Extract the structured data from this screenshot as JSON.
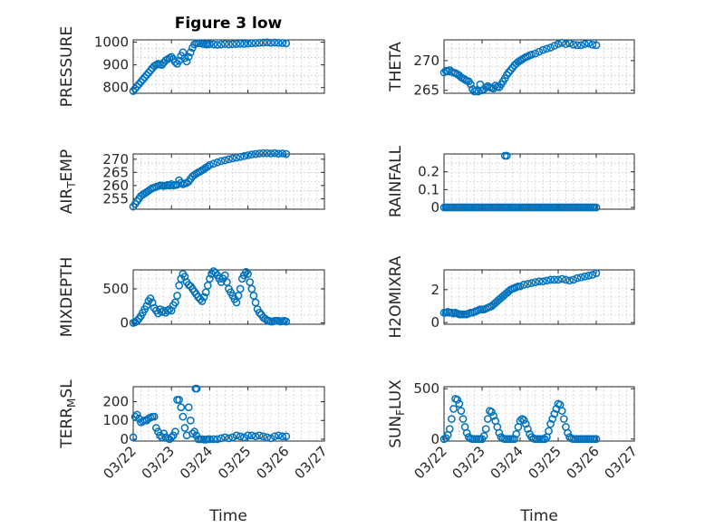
{
  "window": {
    "title": "Figure 3 low"
  },
  "colors": {
    "marker": "#0072BD",
    "axis": "#262626",
    "grid": "#b0b0b0"
  },
  "chart_data": [
    {
      "type": "scatter",
      "id": "pressure",
      "title": "Figure 3 low",
      "ylabel": "PRESSURE",
      "xlim": [
        0.0,
        5.0
      ],
      "ylim": [
        775,
        1010
      ],
      "yticks": [
        800,
        900,
        1000
      ],
      "ytick_labels": [
        "800",
        "900",
        "1000"
      ],
      "xticks": [
        0,
        1,
        2,
        3,
        4,
        5
      ],
      "xtick_labels": [],
      "xlabel": "",
      "x": [
        0,
        0.05,
        0.1,
        0.15,
        0.2,
        0.25,
        0.3,
        0.35,
        0.4,
        0.45,
        0.5,
        0.55,
        0.6,
        0.65,
        0.7,
        0.75,
        0.8,
        0.85,
        0.9,
        0.95,
        1.0,
        1.05,
        1.1,
        1.15,
        1.2,
        1.25,
        1.3,
        1.35,
        1.4,
        1.45,
        1.5,
        1.55,
        1.6,
        1.65,
        1.7,
        1.75,
        1.8,
        1.85,
        1.9,
        1.95,
        2.0,
        2.1,
        2.2,
        2.3,
        2.4,
        2.5,
        2.6,
        2.7,
        2.8,
        2.9,
        3.0,
        3.1,
        3.2,
        3.3,
        3.4,
        3.5,
        3.6,
        3.7,
        3.8,
        3.9,
        4.0
      ],
      "y": [
        785,
        795,
        805,
        815,
        825,
        835,
        845,
        855,
        865,
        875,
        885,
        895,
        900,
        905,
        902,
        900,
        910,
        920,
        925,
        930,
        935,
        925,
        912,
        905,
        918,
        940,
        955,
        930,
        915,
        935,
        955,
        975,
        990,
        995,
        995,
        995,
        993,
        992,
        990,
        990,
        992,
        990,
        988,
        990,
        992,
        990,
        991,
        992,
        993,
        992,
        994,
        995,
        996,
        997,
        998,
        999,
        997,
        998,
        997,
        996,
        995
      ]
    },
    {
      "type": "scatter",
      "id": "theta",
      "ylabel": "THETA",
      "xlim": [
        0.0,
        5.0
      ],
      "ylim": [
        264.5,
        273.5
      ],
      "yticks": [
        265,
        270
      ],
      "ytick_labels": [
        "265",
        "270"
      ],
      "xticks": [
        0,
        1,
        2,
        3,
        4,
        5
      ],
      "xtick_labels": [],
      "xlabel": "",
      "x": [
        0,
        0.05,
        0.1,
        0.15,
        0.2,
        0.25,
        0.3,
        0.35,
        0.4,
        0.45,
        0.5,
        0.55,
        0.6,
        0.65,
        0.7,
        0.75,
        0.8,
        0.85,
        0.9,
        0.95,
        1.0,
        1.05,
        1.1,
        1.15,
        1.2,
        1.25,
        1.3,
        1.35,
        1.4,
        1.45,
        1.5,
        1.55,
        1.6,
        1.65,
        1.7,
        1.75,
        1.8,
        1.85,
        1.9,
        1.95,
        2.0,
        2.05,
        2.1,
        2.15,
        2.2,
        2.25,
        2.3,
        2.4,
        2.5,
        2.6,
        2.7,
        2.8,
        2.9,
        3.0,
        3.1,
        3.2,
        3.3,
        3.4,
        3.5,
        3.6,
        3.7,
        3.8,
        3.9,
        4.0
      ],
      "y": [
        268.0,
        268.3,
        268.2,
        268.4,
        268.1,
        268.0,
        267.9,
        267.7,
        267.5,
        267.2,
        267.0,
        266.8,
        266.6,
        266.5,
        266.0,
        265.2,
        264.8,
        265.0,
        264.8,
        266.0,
        265.0,
        265.2,
        265.5,
        265.7,
        265.5,
        265.4,
        265.3,
        265.8,
        265.6,
        265.5,
        266.0,
        266.5,
        267.0,
        267.6,
        268.0,
        268.4,
        268.8,
        269.2,
        269.5,
        269.8,
        270.0,
        270.2,
        270.4,
        270.6,
        270.7,
        270.9,
        271.0,
        271.2,
        271.5,
        271.8,
        272.0,
        272.2,
        272.5,
        272.8,
        273.0,
        272.8,
        272.9,
        272.7,
        272.6,
        272.6,
        272.8,
        272.9,
        272.7,
        272.6
      ]
    },
    {
      "type": "scatter",
      "id": "airtemp",
      "ylabel": "AIR_TEMP",
      "xlim": [
        0.0,
        5.0
      ],
      "ylim": [
        251,
        272
      ],
      "yticks": [
        255,
        260,
        265,
        270
      ],
      "ytick_labels": [
        "255",
        "260",
        "265",
        "270"
      ],
      "xticks": [
        0,
        1,
        2,
        3,
        4,
        5
      ],
      "xtick_labels": [],
      "xlabel": "",
      "x": [
        0,
        0.05,
        0.1,
        0.15,
        0.2,
        0.25,
        0.3,
        0.35,
        0.4,
        0.45,
        0.5,
        0.55,
        0.6,
        0.65,
        0.7,
        0.75,
        0.8,
        0.85,
        0.9,
        0.95,
        1.0,
        1.05,
        1.1,
        1.15,
        1.2,
        1.25,
        1.3,
        1.35,
        1.4,
        1.45,
        1.5,
        1.55,
        1.6,
        1.65,
        1.7,
        1.75,
        1.8,
        1.85,
        1.9,
        1.95,
        2.0,
        2.1,
        2.2,
        2.3,
        2.4,
        2.5,
        2.6,
        2.7,
        2.8,
        2.9,
        3.0,
        3.1,
        3.2,
        3.3,
        3.4,
        3.5,
        3.6,
        3.7,
        3.8,
        3.9,
        4.0
      ],
      "y": [
        252,
        253,
        254,
        255,
        256,
        256.5,
        257,
        257.5,
        258,
        258.5,
        259,
        259.2,
        259.5,
        259.8,
        260,
        260,
        259.8,
        260,
        260.2,
        260,
        260.5,
        260,
        260.2,
        260.3,
        262,
        261,
        260.5,
        260.8,
        261,
        261.5,
        262.5,
        263.5,
        264,
        264.5,
        265,
        265.3,
        265.8,
        266.2,
        266.8,
        267.2,
        267.8,
        268.3,
        268.8,
        269.3,
        269.6,
        270,
        270.3,
        270.6,
        270.9,
        271.2,
        271.5,
        271.8,
        272,
        272.2,
        272.3,
        272.3,
        272.2,
        272.3,
        272.1,
        272.2,
        272.0
      ]
    },
    {
      "type": "scatter",
      "id": "rainfall",
      "ylabel": "RAINFALL",
      "xlim": [
        0.0,
        5.0
      ],
      "ylim": [
        -0.01,
        0.3
      ],
      "yticks": [
        0,
        0.1,
        0.2
      ],
      "ytick_labels": [
        "0",
        "0.1",
        "0.2"
      ],
      "xticks": [
        0,
        1,
        2,
        3,
        4,
        5
      ],
      "xtick_labels": [],
      "xlabel": "",
      "x": [
        0,
        0.05,
        0.1,
        0.15,
        0.2,
        0.25,
        0.3,
        0.35,
        0.4,
        0.45,
        0.5,
        0.55,
        0.6,
        0.65,
        0.7,
        0.75,
        0.8,
        0.85,
        0.9,
        0.95,
        1.0,
        1.05,
        1.1,
        1.15,
        1.2,
        1.25,
        1.3,
        1.35,
        1.4,
        1.45,
        1.5,
        1.55,
        1.6,
        1.65,
        1.7,
        1.75,
        1.8,
        1.85,
        1.9,
        1.95,
        2.0,
        2.05,
        2.1,
        2.15,
        2.2,
        2.25,
        2.3,
        2.35,
        2.4,
        2.45,
        2.5,
        2.55,
        2.6,
        2.65,
        2.7,
        2.75,
        2.8,
        2.85,
        2.9,
        2.95,
        3.0,
        3.05,
        3.1,
        3.15,
        3.2,
        3.25,
        3.3,
        3.35,
        3.4,
        3.45,
        3.5,
        3.55,
        3.6,
        3.65,
        3.7,
        3.75,
        3.8,
        3.85,
        3.9,
        3.95,
        4.0,
        1.6,
        1.65
      ],
      "y": [
        0,
        0,
        0,
        0,
        0,
        0,
        0,
        0,
        0,
        0,
        0,
        0,
        0,
        0,
        0,
        0,
        0,
        0,
        0,
        0,
        0,
        0,
        0,
        0,
        0,
        0,
        0,
        0,
        0,
        0,
        0,
        0,
        0,
        0,
        0,
        0,
        0,
        0,
        0,
        0,
        0,
        0,
        0,
        0,
        0,
        0,
        0,
        0,
        0,
        0,
        0,
        0,
        0,
        0,
        0,
        0,
        0,
        0,
        0,
        0,
        0,
        0,
        0,
        0,
        0,
        0,
        0,
        0,
        0,
        0,
        0,
        0,
        0,
        0,
        0,
        0,
        0,
        0,
        0,
        0,
        0,
        0.29,
        0.29
      ]
    },
    {
      "type": "scatter",
      "id": "mixdepth",
      "ylabel": "MIXDEPTH",
      "xlim": [
        0.0,
        5.0
      ],
      "ylim": [
        -20,
        780
      ],
      "yticks": [
        0,
        500
      ],
      "ytick_labels": [
        "0",
        "500"
      ],
      "xticks": [
        0,
        1,
        2,
        3,
        4,
        5
      ],
      "xtick_labels": [],
      "xlabel": "",
      "x": [
        0,
        0.05,
        0.1,
        0.15,
        0.2,
        0.25,
        0.3,
        0.35,
        0.4,
        0.45,
        0.5,
        0.55,
        0.6,
        0.65,
        0.7,
        0.75,
        0.8,
        0.85,
        0.9,
        0.95,
        1.0,
        1.05,
        1.1,
        1.15,
        1.2,
        1.25,
        1.3,
        1.35,
        1.4,
        1.45,
        1.5,
        1.55,
        1.6,
        1.65,
        1.7,
        1.75,
        1.8,
        1.85,
        1.9,
        1.95,
        2.0,
        2.05,
        2.1,
        2.15,
        2.2,
        2.25,
        2.3,
        2.35,
        2.4,
        2.45,
        2.5,
        2.55,
        2.6,
        2.65,
        2.7,
        2.75,
        2.8,
        2.85,
        2.9,
        2.95,
        3.0,
        3.05,
        3.1,
        3.15,
        3.2,
        3.25,
        3.3,
        3.35,
        3.4,
        3.45,
        3.5,
        3.55,
        3.6,
        3.65,
        3.7,
        3.75,
        3.8,
        3.85,
        3.9,
        3.95,
        4.0
      ],
      "y": [
        0,
        10,
        30,
        60,
        100,
        150,
        200,
        250,
        320,
        360,
        300,
        220,
        180,
        140,
        200,
        160,
        180,
        150,
        180,
        200,
        180,
        260,
        300,
        400,
        550,
        650,
        720,
        680,
        600,
        560,
        540,
        500,
        460,
        420,
        380,
        350,
        320,
        380,
        450,
        550,
        650,
        720,
        760,
        740,
        700,
        650,
        600,
        650,
        700,
        600,
        500,
        450,
        400,
        350,
        300,
        400,
        500,
        650,
        700,
        750,
        720,
        600,
        500,
        400,
        300,
        200,
        150,
        120,
        80,
        60,
        40,
        30,
        20,
        20,
        30,
        30,
        30,
        20,
        25,
        30,
        20
      ]
    },
    {
      "type": "scatter",
      "id": "h2omixra",
      "ylabel": "H2OMIXRA",
      "xlim": [
        0.0,
        5.0
      ],
      "ylim": [
        -0.1,
        3.2
      ],
      "yticks": [
        0,
        2
      ],
      "ytick_labels": [
        "0",
        "2"
      ],
      "xticks": [
        0,
        1,
        2,
        3,
        4,
        5
      ],
      "xtick_labels": [],
      "xlabel": "",
      "x": [
        0,
        0.05,
        0.1,
        0.15,
        0.2,
        0.25,
        0.3,
        0.35,
        0.4,
        0.45,
        0.5,
        0.55,
        0.6,
        0.65,
        0.7,
        0.75,
        0.8,
        0.85,
        0.9,
        0.95,
        1.0,
        1.05,
        1.1,
        1.15,
        1.2,
        1.25,
        1.3,
        1.35,
        1.4,
        1.45,
        1.5,
        1.55,
        1.6,
        1.65,
        1.7,
        1.75,
        1.8,
        1.85,
        1.9,
        1.95,
        2.0,
        2.1,
        2.2,
        2.3,
        2.4,
        2.5,
        2.6,
        2.7,
        2.8,
        2.9,
        3.0,
        3.1,
        3.2,
        3.3,
        3.4,
        3.5,
        3.6,
        3.7,
        3.8,
        3.9,
        4.0
      ],
      "y": [
        0.6,
        0.6,
        0.65,
        0.6,
        0.6,
        0.55,
        0.6,
        0.55,
        0.5,
        0.5,
        0.5,
        0.5,
        0.5,
        0.55,
        0.6,
        0.6,
        0.65,
        0.7,
        0.75,
        0.8,
        0.8,
        0.8,
        0.85,
        0.9,
        0.95,
        1.0,
        1.1,
        1.2,
        1.3,
        1.4,
        1.5,
        1.6,
        1.7,
        1.8,
        1.9,
        2.0,
        2.05,
        2.1,
        2.15,
        2.2,
        2.2,
        2.3,
        2.35,
        2.4,
        2.45,
        2.5,
        2.5,
        2.55,
        2.6,
        2.6,
        2.6,
        2.65,
        2.6,
        2.55,
        2.6,
        2.7,
        2.75,
        2.8,
        2.85,
        2.9,
        3.0
      ]
    },
    {
      "type": "scatter",
      "id": "terr_msl",
      "ylabel": "TERR_MSL",
      "xlim": [
        0.0,
        5.0
      ],
      "ylim": [
        -10,
        280
      ],
      "yticks": [
        0,
        100,
        200
      ],
      "ytick_labels": [
        "0",
        "100",
        "200"
      ],
      "xticks": [
        0,
        1,
        2,
        3,
        4,
        5
      ],
      "xtick_labels": [
        "03/22",
        "03/23",
        "03/24",
        "03/25",
        "03/26",
        "03/27"
      ],
      "xlabel": "Time",
      "x": [
        0,
        0.05,
        0.1,
        0.15,
        0.2,
        0.25,
        0.3,
        0.35,
        0.4,
        0.45,
        0.5,
        0.55,
        0.6,
        0.65,
        0.7,
        0.75,
        0.8,
        0.85,
        0.9,
        0.95,
        1.0,
        1.05,
        1.1,
        1.15,
        1.2,
        1.25,
        1.3,
        1.35,
        1.4,
        1.45,
        1.5,
        1.55,
        1.6,
        1.65,
        1.7,
        1.75,
        1.8,
        1.85,
        1.9,
        1.95,
        2.0,
        2.1,
        2.2,
        2.3,
        2.4,
        2.5,
        2.6,
        2.7,
        2.8,
        2.9,
        3.0,
        3.1,
        3.2,
        3.3,
        3.4,
        3.5,
        3.6,
        3.7,
        3.8,
        3.9,
        4.0,
        1.63,
        1.66
      ],
      "y": [
        10,
        120,
        130,
        110,
        90,
        95,
        100,
        100,
        110,
        115,
        120,
        120,
        60,
        40,
        20,
        10,
        30,
        10,
        5,
        0,
        10,
        20,
        40,
        210,
        210,
        170,
        120,
        60,
        20,
        170,
        100,
        30,
        40,
        20,
        0,
        0,
        0,
        -2,
        -2,
        0,
        0,
        0,
        0,
        5,
        10,
        5,
        10,
        20,
        15,
        10,
        20,
        20,
        15,
        20,
        15,
        10,
        5,
        15,
        20,
        15,
        15,
        270,
        270
      ]
    },
    {
      "type": "scatter",
      "id": "sun_flux",
      "ylabel": "SUN_FLUX",
      "xlim": [
        0.0,
        5.0
      ],
      "ylim": [
        -20,
        520
      ],
      "yticks": [
        0,
        500
      ],
      "ytick_labels": [
        "0",
        "500"
      ],
      "xticks": [
        0,
        1,
        2,
        3,
        4,
        5
      ],
      "xtick_labels": [
        "03/22",
        "03/23",
        "03/24",
        "03/25",
        "03/26",
        "03/27"
      ],
      "xlabel": "Time",
      "x": [
        0,
        0.05,
        0.1,
        0.15,
        0.2,
        0.25,
        0.3,
        0.35,
        0.4,
        0.45,
        0.5,
        0.55,
        0.6,
        0.65,
        0.7,
        0.75,
        0.8,
        0.85,
        0.9,
        0.95,
        1.0,
        1.05,
        1.1,
        1.15,
        1.2,
        1.25,
        1.3,
        1.35,
        1.4,
        1.45,
        1.5,
        1.55,
        1.6,
        1.65,
        1.7,
        1.75,
        1.8,
        1.85,
        1.9,
        1.95,
        2.0,
        2.05,
        2.1,
        2.15,
        2.2,
        2.25,
        2.3,
        2.35,
        2.4,
        2.45,
        2.5,
        2.55,
        2.6,
        2.65,
        2.7,
        2.75,
        2.8,
        2.85,
        2.9,
        2.95,
        3.0,
        3.05,
        3.1,
        3.15,
        3.2,
        3.25,
        3.3,
        3.35,
        3.4,
        3.45,
        3.5,
        3.55,
        3.6,
        3.65,
        3.7,
        3.75,
        3.8,
        3.85,
        3.9,
        3.95,
        4.0
      ],
      "y": [
        0,
        10,
        40,
        100,
        200,
        300,
        400,
        390,
        350,
        280,
        200,
        120,
        60,
        20,
        5,
        0,
        0,
        0,
        0,
        0,
        0,
        30,
        100,
        200,
        280,
        270,
        230,
        180,
        120,
        60,
        20,
        5,
        0,
        0,
        0,
        0,
        0,
        0,
        50,
        120,
        180,
        200,
        190,
        150,
        100,
        50,
        20,
        5,
        0,
        0,
        0,
        0,
        0,
        0,
        20,
        80,
        150,
        200,
        250,
        300,
        350,
        340,
        280,
        200,
        120,
        60,
        20,
        5,
        0,
        0,
        0,
        0,
        0,
        0,
        0,
        0,
        0,
        0,
        0,
        0,
        0
      ]
    }
  ]
}
